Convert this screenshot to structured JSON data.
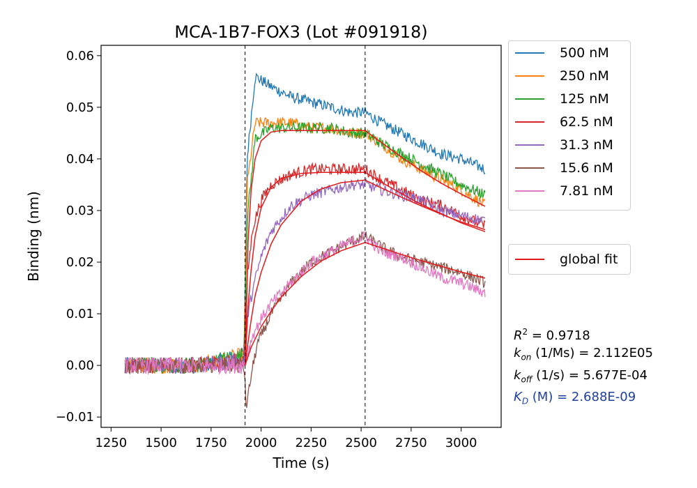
{
  "chart_data": {
    "type": "line",
    "title": "MCA-1B7-FOX3 (Lot #091918)",
    "xlabel": "Time (s)",
    "ylabel": "Binding (nm)",
    "xlim": [
      1200,
      3200
    ],
    "ylim": [
      -0.012,
      0.062
    ],
    "xticks": [
      1250,
      1500,
      1750,
      2000,
      2250,
      2500,
      2750,
      3000
    ],
    "yticks": [
      -0.01,
      0.0,
      0.01,
      0.02,
      0.03,
      0.04,
      0.05,
      0.06
    ],
    "ytick_labels": [
      "−0.01",
      "0.00",
      "0.01",
      "0.02",
      "0.03",
      "0.04",
      "0.05",
      "0.06"
    ],
    "grid": false,
    "association_start": 1920,
    "dissociation_start": 2520,
    "series": [
      {
        "name": "500 nM",
        "color": "#1f77b4",
        "x": [
          1320,
          1500,
          1700,
          1915,
          1930,
          1970,
          2050,
          2150,
          2250,
          2350,
          2450,
          2520,
          2600,
          2700,
          2800,
          2900,
          3000,
          3120
        ],
        "y": [
          0.0,
          0.0,
          0.0,
          0.002,
          0.04,
          0.056,
          0.054,
          0.052,
          0.051,
          0.05,
          0.049,
          0.049,
          0.047,
          0.045,
          0.043,
          0.041,
          0.04,
          0.038
        ]
      },
      {
        "name": "250 nM",
        "color": "#ff7f0e",
        "x": [
          1320,
          1500,
          1700,
          1915,
          1930,
          1970,
          2050,
          2150,
          2250,
          2350,
          2450,
          2520,
          2600,
          2700,
          2800,
          2900,
          3000,
          3120
        ],
        "y": [
          0.0,
          0.0,
          0.0,
          0.002,
          0.035,
          0.047,
          0.047,
          0.047,
          0.046,
          0.046,
          0.045,
          0.045,
          0.043,
          0.04,
          0.038,
          0.036,
          0.034,
          0.031
        ]
      },
      {
        "name": "125 nM",
        "color": "#2ca02c",
        "x": [
          1320,
          1500,
          1700,
          1915,
          1930,
          1970,
          2050,
          2150,
          2250,
          2350,
          2450,
          2520,
          2600,
          2700,
          2800,
          2900,
          3000,
          3120
        ],
        "y": [
          0.0,
          0.0,
          0.0,
          0.002,
          0.028,
          0.044,
          0.046,
          0.046,
          0.046,
          0.046,
          0.045,
          0.045,
          0.043,
          0.041,
          0.039,
          0.037,
          0.035,
          0.033
        ]
      },
      {
        "name": "62.5 nM",
        "color": "#d62728",
        "x": [
          1320,
          1500,
          1700,
          1915,
          1930,
          1960,
          2000,
          2050,
          2150,
          2250,
          2350,
          2450,
          2520,
          2600,
          2700,
          2800,
          2900,
          3000,
          3120
        ],
        "y": [
          0.0,
          0.0,
          0.0,
          0.001,
          0.017,
          0.027,
          0.032,
          0.035,
          0.037,
          0.038,
          0.038,
          0.038,
          0.038,
          0.036,
          0.034,
          0.032,
          0.031,
          0.029,
          0.027
        ]
      },
      {
        "name": "31.3 nM",
        "color": "#9467bd",
        "x": [
          1320,
          1500,
          1700,
          1915,
          1930,
          1960,
          2000,
          2050,
          2150,
          2250,
          2350,
          2450,
          2520,
          2600,
          2700,
          2800,
          2900,
          3000,
          3120
        ],
        "y": [
          0.0,
          0.0,
          0.0,
          0.001,
          0.009,
          0.015,
          0.021,
          0.026,
          0.031,
          0.033,
          0.034,
          0.035,
          0.035,
          0.034,
          0.033,
          0.032,
          0.03,
          0.029,
          0.028
        ]
      },
      {
        "name": "15.6 nM",
        "color": "#8c564b",
        "x": [
          1320,
          1500,
          1700,
          1915,
          1925,
          1935,
          1950,
          1980,
          2050,
          2150,
          2250,
          2350,
          2450,
          2520,
          2600,
          2700,
          2800,
          2900,
          3000,
          3120
        ],
        "y": [
          0.0,
          0.0,
          0.0,
          0.0,
          -0.008,
          -0.006,
          -0.002,
          0.004,
          0.01,
          0.016,
          0.02,
          0.022,
          0.024,
          0.025,
          0.023,
          0.021,
          0.02,
          0.019,
          0.018,
          0.016
        ]
      },
      {
        "name": "7.81 nM",
        "color": "#e377c2",
        "x": [
          1320,
          1500,
          1700,
          1915,
          1930,
          1960,
          2000,
          2050,
          2150,
          2250,
          2350,
          2450,
          2520,
          2600,
          2700,
          2800,
          2900,
          3000,
          3120
        ],
        "y": [
          0.0,
          0.0,
          0.0,
          0.0,
          0.002,
          0.006,
          0.009,
          0.012,
          0.016,
          0.02,
          0.022,
          0.024,
          0.025,
          0.022,
          0.021,
          0.019,
          0.017,
          0.016,
          0.014
        ]
      }
    ],
    "fit": {
      "name": "global fit",
      "color": "#e31a1c",
      "curves": [
        {
          "x": [
            1920,
            1935,
            1950,
            1970,
            2000,
            2050,
            2100,
            2200,
            2300,
            2400,
            2520,
            2600,
            2700,
            2800,
            2900,
            3000,
            3120
          ],
          "y": [
            0.0,
            0.024,
            0.034,
            0.04,
            0.0435,
            0.0452,
            0.0455,
            0.0455,
            0.0455,
            0.0455,
            0.0455,
            0.0432,
            0.0404,
            0.0377,
            0.0353,
            0.0332,
            0.0308
          ]
        },
        {
          "x": [
            1920,
            1935,
            1950,
            1970,
            2000,
            2050,
            2100,
            2200,
            2300,
            2400,
            2520,
            2600,
            2700,
            2800,
            2900,
            3000,
            3120
          ],
          "y": [
            0.0,
            0.0115,
            0.0185,
            0.025,
            0.0305,
            0.0345,
            0.0362,
            0.0372,
            0.0374,
            0.0374,
            0.0374,
            0.0355,
            0.0333,
            0.0312,
            0.0294,
            0.0276,
            0.0259
          ]
        },
        {
          "x": [
            1920,
            1935,
            1950,
            1970,
            2000,
            2050,
            2100,
            2200,
            2300,
            2400,
            2520,
            2600,
            2700,
            2800,
            2900,
            3000,
            3120
          ],
          "y": [
            0.0,
            0.0045,
            0.0088,
            0.0135,
            0.018,
            0.0235,
            0.0272,
            0.0318,
            0.0342,
            0.0354,
            0.0359,
            0.0344,
            0.0326,
            0.0309,
            0.0293,
            0.0278,
            0.0263
          ]
        },
        {
          "x": [
            1920,
            1950,
            2000,
            2050,
            2100,
            2200,
            2300,
            2400,
            2520,
            2600,
            2700,
            2800,
            2900,
            3000,
            3120
          ],
          "y": [
            0.0,
            0.0035,
            0.0075,
            0.0105,
            0.0132,
            0.0172,
            0.0202,
            0.0222,
            0.0238,
            0.0228,
            0.0215,
            0.0203,
            0.0192,
            0.0181,
            0.0169
          ]
        }
      ]
    }
  },
  "legend": {
    "series": [
      "500 nM",
      "250 nM",
      "125 nM",
      "62.5 nM",
      "31.3 nM",
      "15.6 nM",
      "7.81 nM"
    ],
    "fit_label": "global fit"
  },
  "stats": {
    "r2_symbol": "R",
    "r2_sup": "2",
    "r2_value": " = 0.9718",
    "kon_symbol": "k",
    "kon_sub": "on",
    "kon_value": " (1/Ms) = 2.112E05",
    "koff_symbol": "k",
    "koff_sub": "off",
    "koff_value": " (1/s) = 5.677E-04",
    "kd_symbol": "K",
    "kd_sub": "D",
    "kd_value": " (M) = 2.688E-09",
    "kd_color": "#1f3fa0"
  }
}
